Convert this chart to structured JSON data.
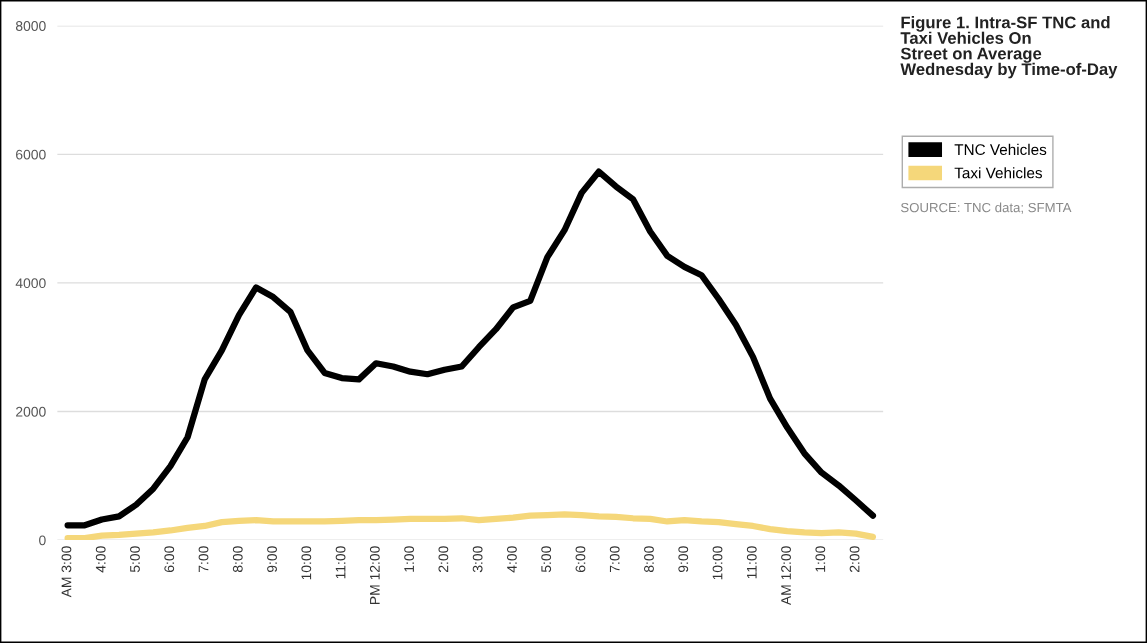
{
  "chart_data": {
    "type": "line",
    "title": "Figure 1. Intra-SF TNC and\nTaxi Vehicles On\nStreet on Average\nWednesday by Time-of-Day",
    "categories": [
      "AM 3:00",
      null,
      "4:00",
      null,
      "5:00",
      null,
      "6:00",
      null,
      "7:00",
      null,
      "8:00",
      null,
      "9:00",
      null,
      "10:00",
      null,
      "11:00",
      null,
      "PM 12:00",
      null,
      "1:00",
      null,
      "2:00",
      null,
      "3:00",
      null,
      "4:00",
      null,
      "5:00",
      null,
      "6:00",
      null,
      "7:00",
      null,
      "8:00",
      null,
      "9:00",
      null,
      "10:00",
      null,
      "11:00",
      null,
      "AM 12:00",
      null,
      "1:00",
      null,
      "2:00",
      null
    ],
    "series": [
      {
        "name": "TNC Vehicles",
        "color": "#000000",
        "values": [
          230,
          230,
          320,
          370,
          550,
          800,
          1150,
          1600,
          2500,
          2950,
          3500,
          3930,
          3780,
          3550,
          2950,
          2600,
          2520,
          2500,
          2750,
          2700,
          2620,
          2580,
          2650,
          2700,
          3000,
          3280,
          3620,
          3720,
          4400,
          4820,
          5400,
          5730,
          5500,
          5300,
          4800,
          4420,
          4250,
          4120,
          3750,
          3350,
          2850,
          2200,
          1750,
          1350,
          1050,
          850,
          620,
          380
        ]
      },
      {
        "name": "Taxi Vehicles",
        "color": "#f5d77a",
        "values": [
          30,
          30,
          70,
          80,
          100,
          120,
          150,
          190,
          220,
          280,
          300,
          310,
          290,
          290,
          290,
          290,
          300,
          310,
          310,
          320,
          330,
          330,
          330,
          340,
          310,
          330,
          350,
          380,
          390,
          400,
          390,
          370,
          360,
          340,
          330,
          290,
          310,
          290,
          280,
          250,
          220,
          170,
          140,
          120,
          110,
          120,
          100,
          50
        ]
      }
    ],
    "ylim": [
      0,
      8000
    ],
    "yticks": [
      0,
      2000,
      4000,
      6000,
      8000
    ],
    "grid": "y",
    "legend": "right",
    "marker": "none",
    "line_style": "solid",
    "annotations": [
      "SOURCE: TNC data; SFMTA"
    ]
  }
}
